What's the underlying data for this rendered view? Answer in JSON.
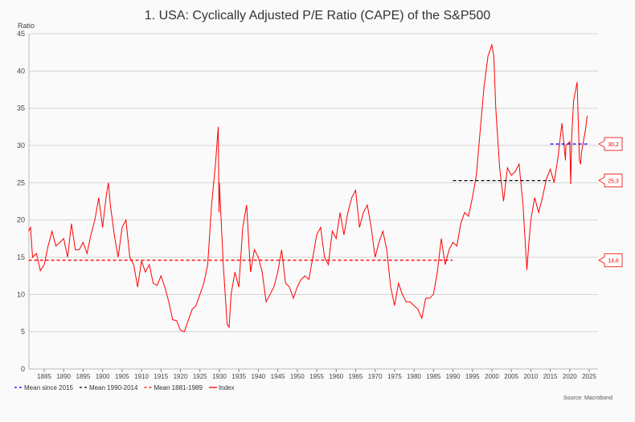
{
  "chart_data": {
    "type": "line",
    "title": "1. USA: Cyclically Adjusted P/E Ratio (CAPE) of the S&P500",
    "ylabel": "Ratio",
    "xlabel": "",
    "ylim": [
      0,
      45
    ],
    "xlim": [
      1881,
      2026
    ],
    "yticks": [
      0,
      5,
      10,
      15,
      20,
      25,
      30,
      35,
      40,
      45
    ],
    "xticks": [
      1885,
      1890,
      1895,
      1900,
      1905,
      1910,
      1915,
      1920,
      1925,
      1930,
      1935,
      1940,
      1945,
      1950,
      1955,
      1960,
      1965,
      1970,
      1975,
      1980,
      1985,
      1990,
      1995,
      2000,
      2005,
      2010,
      2015,
      2020,
      2025
    ],
    "grid": true,
    "legend_position": "bottom-left",
    "source": "Source: Macrobond",
    "series": [
      {
        "name": "Mean since 2015",
        "color": "#0000ff",
        "style": "dashed",
        "x": [
          2015,
          2024.5
        ],
        "y": [
          30.2,
          30.2
        ],
        "label": "30,2"
      },
      {
        "name": "Mean 1990-2014",
        "color": "#000000",
        "style": "dashed",
        "x": [
          1990,
          2015
        ],
        "y": [
          25.3,
          25.3
        ],
        "label": "25,3"
      },
      {
        "name": "Mean 1881-1989",
        "color": "#ff0000",
        "style": "dashed",
        "x": [
          1881,
          1989.9
        ],
        "y": [
          14.6,
          14.6
        ],
        "label": "14,6"
      },
      {
        "name": "Index",
        "color": "#ff0000",
        "style": "solid",
        "x": [
          1881,
          1881.5,
          1882,
          1883,
          1884,
          1885,
          1886,
          1887,
          1888,
          1889,
          1890,
          1891,
          1892,
          1893,
          1894,
          1895,
          1896,
          1897,
          1898,
          1899,
          1900,
          1901,
          1901.5,
          1902,
          1903,
          1904,
          1905,
          1906,
          1907,
          1908,
          1909,
          1910,
          1911,
          1912,
          1913,
          1914,
          1915,
          1916,
          1917,
          1918,
          1919,
          1920,
          1921,
          1922,
          1923,
          1924,
          1925,
          1926,
          1927,
          1928,
          1929,
          1929.7,
          1929.9,
          1930,
          1931,
          1932,
          1932.5,
          1933,
          1934,
          1935,
          1936,
          1937,
          1938,
          1939,
          1940,
          1941,
          1942,
          1943,
          1944,
          1945,
          1946,
          1947,
          1948,
          1949,
          1950,
          1951,
          1952,
          1953,
          1954,
          1955,
          1956,
          1957,
          1958,
          1959,
          1960,
          1961,
          1962,
          1963,
          1964,
          1965,
          1966,
          1967,
          1968,
          1969,
          1970,
          1971,
          1972,
          1973,
          1974,
          1975,
          1976,
          1977,
          1978,
          1979,
          1980,
          1981,
          1982,
          1983,
          1984,
          1985,
          1986,
          1987,
          1988,
          1989,
          1990,
          1991,
          1992,
          1993,
          1994,
          1995,
          1996,
          1997,
          1998,
          1999,
          2000,
          2000.5,
          2001,
          2002,
          2003,
          2004,
          2005,
          2006,
          2007,
          2008,
          2009,
          2009.5,
          2010,
          2011,
          2012,
          2013,
          2014,
          2015,
          2016,
          2017,
          2018,
          2018.9,
          2019,
          2020,
          2020.25,
          2020.5,
          2021,
          2021.9,
          2022.5,
          2022.8,
          2023,
          2024,
          2024.5
        ],
        "y": [
          18.5,
          19,
          15,
          15.5,
          13.2,
          14,
          16.5,
          18.5,
          16.5,
          17,
          17.5,
          15,
          19.5,
          16,
          16,
          17,
          15.5,
          18,
          20,
          23,
          19,
          23.5,
          25,
          22,
          18,
          15,
          19,
          20,
          15,
          14,
          11,
          14.5,
          13,
          14,
          11.5,
          11.2,
          12.5,
          11,
          9,
          6.6,
          6.5,
          5.2,
          5,
          6.5,
          8,
          8.5,
          10,
          11.5,
          14,
          22,
          27.5,
          32.5,
          21,
          25,
          14,
          6,
          5.6,
          10,
          13,
          11,
          19,
          22,
          13,
          16,
          15,
          13,
          9,
          10,
          11,
          13,
          16,
          11.5,
          11,
          9.5,
          11,
          12,
          12.5,
          12,
          15,
          18,
          19,
          15,
          14,
          18.5,
          17.5,
          21,
          18,
          21,
          23,
          24,
          19,
          21,
          22,
          19,
          15,
          17,
          18.5,
          16,
          11,
          8.5,
          11.5,
          10,
          9,
          9,
          8.5,
          8,
          6.8,
          9.5,
          9.5,
          10,
          13,
          17.5,
          14,
          16,
          17,
          16.5,
          19.5,
          21,
          20.5,
          23,
          26,
          32,
          38,
          42,
          43.5,
          42,
          35,
          27,
          22.5,
          27,
          26,
          26.5,
          27.5,
          22,
          13.3,
          17,
          20,
          23,
          21,
          23,
          25.5,
          26.8,
          25,
          28.5,
          33,
          28,
          30,
          30.5,
          24.8,
          31,
          36,
          38.5,
          28,
          27.5,
          29,
          32,
          34
        ]
      }
    ]
  }
}
